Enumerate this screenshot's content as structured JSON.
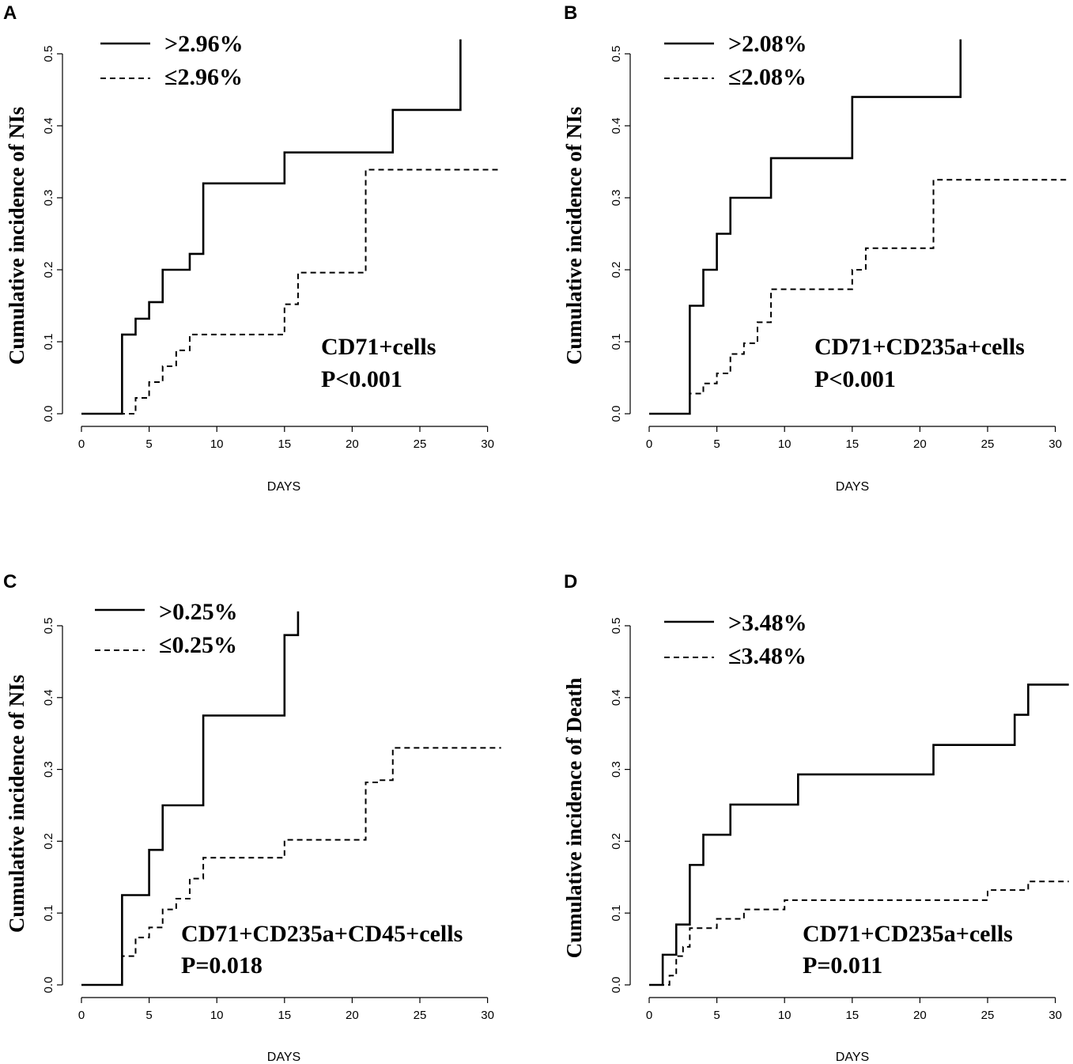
{
  "chart_data": [
    {
      "type": "line",
      "panel": "A",
      "xlabel": "DAYS",
      "ylabel": "Cumulative incidence of NIs",
      "xlim": [
        0,
        31
      ],
      "ylim": [
        0,
        0.52
      ],
      "x_ticks": [
        "0",
        "5",
        "10",
        "15",
        "20",
        "25",
        "30"
      ],
      "y_ticks": [
        "0.0",
        "0.1",
        "0.2",
        "0.3",
        "0.4",
        "0.5"
      ],
      "annotation": [
        "CD71+cells",
        "P<0.001"
      ],
      "series": [
        {
          "name": ">2.96%",
          "style": "solid",
          "x": [
            0,
            3,
            4,
            5,
            6,
            8,
            9,
            15,
            23,
            28,
            28
          ],
          "y": [
            0,
            0.11,
            0.132,
            0.155,
            0.2,
            0.222,
            0.32,
            0.363,
            0.422,
            0.422,
            0.52
          ]
        },
        {
          "name": "≤2.96%",
          "style": "dashed",
          "x": [
            0,
            4,
            5,
            6,
            7,
            8,
            15,
            16,
            21,
            31
          ],
          "y": [
            0,
            0.022,
            0.044,
            0.066,
            0.088,
            0.11,
            0.152,
            0.196,
            0.339,
            0.339
          ]
        }
      ]
    },
    {
      "type": "line",
      "panel": "B",
      "xlabel": "DAYS",
      "ylabel": "Cumulative incidence of NIs",
      "xlim": [
        0,
        31
      ],
      "ylim": [
        0,
        0.52
      ],
      "x_ticks": [
        "0",
        "5",
        "10",
        "15",
        "20",
        "25",
        "30"
      ],
      "y_ticks": [
        "0.0",
        "0.1",
        "0.2",
        "0.3",
        "0.4",
        "0.5"
      ],
      "annotation": [
        "CD71+CD235a+cells",
        "P<0.001"
      ],
      "series": [
        {
          "name": ">2.08%",
          "style": "solid",
          "x": [
            0,
            3,
            4,
            5,
            6,
            9,
            15,
            23,
            23
          ],
          "y": [
            0,
            0.15,
            0.2,
            0.25,
            0.3,
            0.355,
            0.44,
            0.44,
            0.52
          ]
        },
        {
          "name": "≤2.08%",
          "style": "dashed",
          "x": [
            0,
            3,
            4,
            5,
            6,
            7,
            8,
            9,
            15,
            16,
            21,
            31
          ],
          "y": [
            0,
            0.028,
            0.042,
            0.056,
            0.083,
            0.098,
            0.127,
            0.173,
            0.2,
            0.23,
            0.325,
            0.325
          ]
        }
      ]
    },
    {
      "type": "line",
      "panel": "C",
      "xlabel": "DAYS",
      "ylabel": "Cumulative incidence of NIs",
      "xlim": [
        0,
        31
      ],
      "ylim": [
        0,
        0.52
      ],
      "x_ticks": [
        "0",
        "5",
        "10",
        "15",
        "20",
        "25",
        "30"
      ],
      "y_ticks": [
        "0.0",
        "0.1",
        "0.2",
        "0.3",
        "0.4",
        "0.5"
      ],
      "annotation": [
        "CD71+CD235a+CD45+cells",
        "P=0.018"
      ],
      "series": [
        {
          "name": ">0.25%",
          "style": "solid",
          "x": [
            0,
            3,
            5,
            6,
            9,
            15,
            16,
            16
          ],
          "y": [
            0,
            0.125,
            0.188,
            0.25,
            0.375,
            0.487,
            0.487,
            0.52
          ]
        },
        {
          "name": "≤0.25%",
          "style": "dashed",
          "x": [
            0,
            3,
            4,
            5,
            6,
            7,
            8,
            9,
            15,
            21,
            22,
            23,
            31
          ],
          "y": [
            0,
            0.04,
            0.066,
            0.08,
            0.105,
            0.12,
            0.148,
            0.177,
            0.202,
            0.282,
            0.285,
            0.33,
            0.33
          ]
        }
      ]
    },
    {
      "type": "line",
      "panel": "D",
      "xlabel": "DAYS",
      "ylabel": "Cumulative incidence of Death",
      "xlim": [
        0,
        31
      ],
      "ylim": [
        0,
        0.52
      ],
      "x_ticks": [
        "0",
        "5",
        "10",
        "15",
        "20",
        "25",
        "30"
      ],
      "y_ticks": [
        "0.0",
        "0.1",
        "0.2",
        "0.3",
        "0.4",
        "0.5"
      ],
      "annotation": [
        "CD71+CD235a+cells",
        "P=0.011"
      ],
      "series": [
        {
          "name": ">3.48%",
          "style": "solid",
          "x": [
            0,
            1,
            2,
            3,
            4,
            6,
            11,
            21,
            27,
            28,
            31
          ],
          "y": [
            0,
            0.042,
            0.084,
            0.167,
            0.209,
            0.251,
            0.293,
            0.334,
            0.376,
            0.418,
            0.418
          ]
        },
        {
          "name": "≤3.48%",
          "style": "dashed",
          "x": [
            0,
            1.5,
            2,
            2.5,
            3,
            5,
            7,
            10,
            25,
            28,
            31
          ],
          "y": [
            0,
            0.013,
            0.04,
            0.053,
            0.079,
            0.092,
            0.105,
            0.118,
            0.132,
            0.144,
            0.144
          ]
        }
      ]
    }
  ]
}
